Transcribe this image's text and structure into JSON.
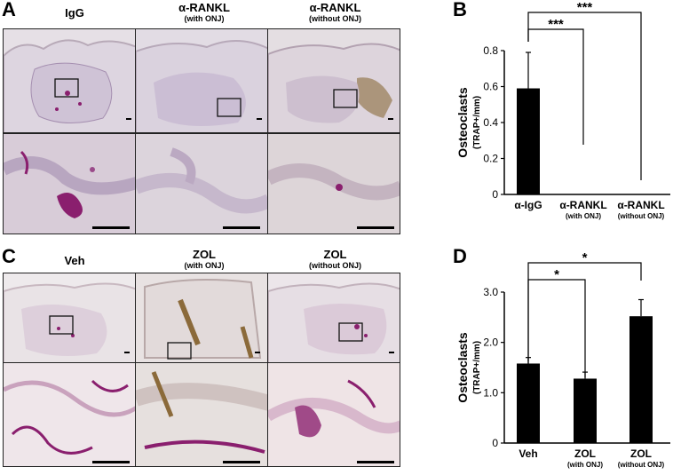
{
  "panel_letters": {
    "a": "A",
    "b": "B",
    "c": "C",
    "d": "D"
  },
  "panel_a": {
    "columns": [
      {
        "main": "IgG",
        "sub": ""
      },
      {
        "main": "α-RANKL",
        "sub": "(with ONJ)"
      },
      {
        "main": "α-RANKL",
        "sub": "(without ONJ)"
      }
    ]
  },
  "panel_c": {
    "columns": [
      {
        "main": "Veh",
        "sub": ""
      },
      {
        "main": "ZOL",
        "sub": "(with ONJ)"
      },
      {
        "main": "ZOL",
        "sub": "(without ONJ)"
      }
    ]
  },
  "colors": {
    "tissue_a": "#d9d2de",
    "tissue_c": "#ece6ea",
    "stain": "#8a1f6e",
    "brown": "#8b6a3a",
    "bar": "#000000"
  },
  "chart_data": [
    {
      "type": "bar",
      "ylabel": "Osteoclasts",
      "ylabel_unit": "(TRAP+/mm)",
      "ylim": [
        0,
        0.8
      ],
      "yticks": [
        "0",
        "0.2",
        "0.4",
        "0.6",
        "0.8"
      ],
      "categories": [
        {
          "main": "α-IgG",
          "sub": ""
        },
        {
          "main": "α-RANKL",
          "sub": "(with ONJ)"
        },
        {
          "main": "α-RANKL",
          "sub": "(without ONJ)"
        }
      ],
      "values": [
        0.59,
        0,
        0
      ],
      "errors": [
        0.2,
        0,
        0
      ],
      "significance": [
        {
          "from": 0,
          "to": 1,
          "label": "***"
        },
        {
          "from": 0,
          "to": 2,
          "label": "***"
        }
      ]
    },
    {
      "type": "bar",
      "ylabel": "Osteoclasts",
      "ylabel_unit": "(TRAP+/mm)",
      "ylim": [
        0,
        3.0
      ],
      "yticks": [
        "0",
        "1.0",
        "2.0",
        "3.0"
      ],
      "categories": [
        {
          "main": "Veh",
          "sub": ""
        },
        {
          "main": "ZOL",
          "sub": "(with ONJ)"
        },
        {
          "main": "ZOL",
          "sub": "(without ONJ)"
        }
      ],
      "values": [
        1.58,
        1.28,
        2.52
      ],
      "errors": [
        0.12,
        0.13,
        0.33
      ],
      "significance": [
        {
          "from": 0,
          "to": 1,
          "label": "*"
        },
        {
          "from": 0,
          "to": 2,
          "label": "*"
        }
      ]
    }
  ]
}
